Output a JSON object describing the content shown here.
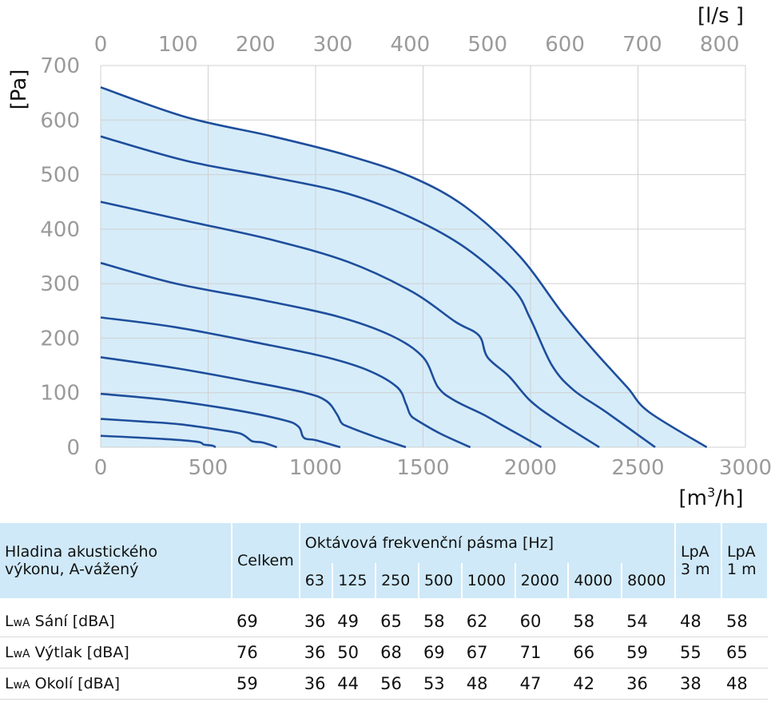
{
  "chart_data": {
    "type": "line",
    "x_bottom_unit": "[m³/h]",
    "x_top_unit": "[l/s ]",
    "y_unit": "[Pa]",
    "x_bottom_ticks": [
      "0",
      "500",
      "1000",
      "1500",
      "2000",
      "2500",
      "3000"
    ],
    "x_top_ticks": [
      "0",
      "100",
      "200",
      "300",
      "400",
      "500",
      "600",
      "700",
      "800"
    ],
    "y_ticks": [
      "0",
      "100",
      "200",
      "300",
      "400",
      "500",
      "600",
      "700"
    ],
    "xlim": [
      0,
      3000
    ],
    "ylim": [
      0,
      700
    ],
    "x_top_lim": [
      0,
      833.3
    ],
    "grid": true,
    "fill_color": "#d6ecf9",
    "line_color": "#1e4e9c",
    "grid_color": "#d0d0d0",
    "series": [
      {
        "points": [
          [
            0,
            21
          ],
          [
            300,
            15
          ],
          [
            450,
            10
          ],
          [
            480,
            5
          ],
          [
            520,
            3
          ],
          [
            535,
            0
          ]
        ]
      },
      {
        "points": [
          [
            0,
            52
          ],
          [
            200,
            47
          ],
          [
            370,
            42
          ],
          [
            550,
            32
          ],
          [
            650,
            25
          ],
          [
            700,
            12
          ],
          [
            720,
            10
          ],
          [
            760,
            8
          ],
          [
            820,
            0
          ]
        ]
      },
      {
        "points": [
          [
            0,
            98
          ],
          [
            300,
            87
          ],
          [
            600,
            70
          ],
          [
            850,
            50
          ],
          [
            920,
            38
          ],
          [
            940,
            20
          ],
          [
            960,
            15
          ],
          [
            1000,
            13
          ],
          [
            1115,
            0
          ]
        ]
      },
      {
        "points": [
          [
            0,
            165
          ],
          [
            350,
            145
          ],
          [
            700,
            120
          ],
          [
            950,
            100
          ],
          [
            1050,
            85
          ],
          [
            1100,
            60
          ],
          [
            1120,
            45
          ],
          [
            1150,
            38
          ],
          [
            1270,
            20
          ],
          [
            1420,
            0
          ]
        ]
      },
      {
        "points": [
          [
            0,
            238
          ],
          [
            350,
            220
          ],
          [
            750,
            190
          ],
          [
            1050,
            165
          ],
          [
            1250,
            140
          ],
          [
            1380,
            110
          ],
          [
            1420,
            80
          ],
          [
            1440,
            60
          ],
          [
            1470,
            50
          ],
          [
            1580,
            25
          ],
          [
            1720,
            0
          ]
        ]
      },
      {
        "points": [
          [
            0,
            338
          ],
          [
            350,
            300
          ],
          [
            750,
            270
          ],
          [
            1100,
            240
          ],
          [
            1350,
            205
          ],
          [
            1500,
            165
          ],
          [
            1570,
            110
          ],
          [
            1650,
            85
          ],
          [
            1780,
            60
          ],
          [
            1870,
            40
          ],
          [
            2050,
            0
          ]
        ]
      },
      {
        "points": [
          [
            0,
            450
          ],
          [
            400,
            415
          ],
          [
            800,
            380
          ],
          [
            1150,
            340
          ],
          [
            1450,
            285
          ],
          [
            1650,
            230
          ],
          [
            1760,
            205
          ],
          [
            1800,
            165
          ],
          [
            1900,
            130
          ],
          [
            2000,
            85
          ],
          [
            2120,
            50
          ],
          [
            2320,
            0
          ]
        ]
      },
      {
        "points": [
          [
            0,
            570
          ],
          [
            400,
            525
          ],
          [
            800,
            495
          ],
          [
            1150,
            465
          ],
          [
            1450,
            420
          ],
          [
            1700,
            365
          ],
          [
            1920,
            290
          ],
          [
            2000,
            235
          ],
          [
            2100,
            150
          ],
          [
            2200,
            105
          ],
          [
            2350,
            65
          ],
          [
            2580,
            0
          ]
        ]
      },
      {
        "points": [
          [
            0,
            660
          ],
          [
            400,
            605
          ],
          [
            800,
            570
          ],
          [
            1150,
            535
          ],
          [
            1450,
            495
          ],
          [
            1700,
            440
          ],
          [
            1950,
            350
          ],
          [
            2150,
            245
          ],
          [
            2300,
            175
          ],
          [
            2450,
            110
          ],
          [
            2550,
            65
          ],
          [
            2820,
            0
          ]
        ]
      }
    ]
  },
  "table": {
    "header_label": "Hladina akustického výkonu, A-vážený",
    "header_label_line1": "Hladina akustického",
    "header_label_line2": "výkonu, A-vážený",
    "total_label": "Celkem",
    "band_label": "Oktávová frekvenční pásma [Hz]",
    "bands": [
      "63",
      "125",
      "250",
      "500",
      "1000",
      "2000",
      "4000",
      "8000"
    ],
    "lpa3_label_line1": "LpA",
    "lpa3_label_line2": "3 m",
    "lpa1_label_line1": "LpA",
    "lpa1_label_line2": "1 m",
    "rows": [
      {
        "prefix": "L",
        "sub": "wA",
        "label": " Sání [dBA]",
        "total": "69",
        "bands": [
          "36",
          "49",
          "65",
          "58",
          "62",
          "60",
          "58",
          "54"
        ],
        "lpa3": "48",
        "lpa1": "58"
      },
      {
        "prefix": "L",
        "sub": "wA",
        "label": " Výtlak [dBA]",
        "total": "76",
        "bands": [
          "36",
          "50",
          "68",
          "69",
          "67",
          "71",
          "66",
          "59"
        ],
        "lpa3": "55",
        "lpa1": "65"
      },
      {
        "prefix": "L",
        "sub": "wA",
        "label": " Okolí [dBA]",
        "total": "59",
        "bands": [
          "36",
          "44",
          "56",
          "53",
          "48",
          "47",
          "42",
          "36"
        ],
        "lpa3": "38",
        "lpa1": "48"
      }
    ]
  }
}
